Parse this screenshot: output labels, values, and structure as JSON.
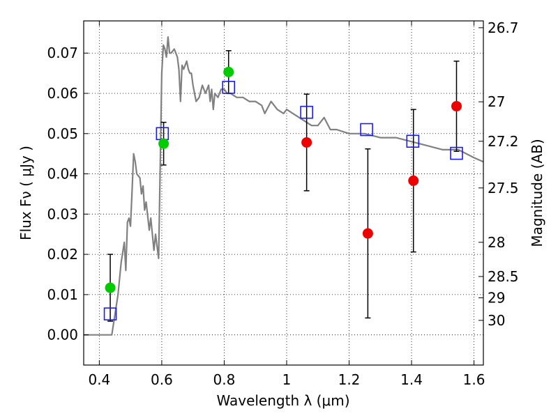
{
  "chart_data": {
    "type": "scatter",
    "xlabel": "Wavelength  λ (μm)",
    "ylabel": "Flux  Fν  ( μJy )",
    "y2label": "Magnitude (AB)",
    "xlim": [
      0.35,
      1.63
    ],
    "ylim": [
      -0.0075,
      0.078
    ],
    "grid": true,
    "xticks": [
      0.4,
      0.6,
      0.8,
      1.0,
      1.2,
      1.4,
      1.6
    ],
    "xtick_labels": [
      "0.4",
      "0.6",
      "0.8",
      "1",
      "1.2",
      "1.4",
      "1.6"
    ],
    "yticks": [
      0.0,
      0.01,
      0.02,
      0.03,
      0.04,
      0.05,
      0.06,
      0.07
    ],
    "ytick_labels": [
      "0.00",
      "0.01",
      "0.02",
      "0.03",
      "0.04",
      "0.05",
      "0.06",
      "0.07"
    ],
    "y2ticks": [
      {
        "label": "26.7",
        "flux": 0.0763
      },
      {
        "label": "27",
        "flux": 0.0579
      },
      {
        "label": "27.2",
        "flux": 0.0481
      },
      {
        "label": "27.5",
        "flux": 0.0365
      },
      {
        "label": "28",
        "flux": 0.023
      },
      {
        "label": "28.5",
        "flux": 0.0145
      },
      {
        "label": "29",
        "flux": 0.0092
      },
      {
        "label": "30",
        "flux": 0.0036
      }
    ],
    "model_spectrum": {
      "color": "#808080",
      "x": [
        0.35,
        0.43,
        0.44,
        0.46,
        0.47,
        0.48,
        0.485,
        0.49,
        0.495,
        0.5,
        0.505,
        0.51,
        0.515,
        0.52,
        0.53,
        0.535,
        0.54,
        0.545,
        0.55,
        0.56,
        0.565,
        0.575,
        0.58,
        0.585,
        0.59,
        0.595,
        0.6,
        0.605,
        0.61,
        0.615,
        0.62,
        0.625,
        0.63,
        0.64,
        0.645,
        0.65,
        0.655,
        0.66,
        0.665,
        0.67,
        0.68,
        0.685,
        0.69,
        0.695,
        0.7,
        0.705,
        0.71,
        0.72,
        0.73,
        0.74,
        0.75,
        0.755,
        0.76,
        0.765,
        0.77,
        0.78,
        0.79,
        0.8,
        0.81,
        0.82,
        0.84,
        0.86,
        0.88,
        0.9,
        0.92,
        0.93,
        0.95,
        0.97,
        0.99,
        1.0,
        1.02,
        1.04,
        1.06,
        1.08,
        1.1,
        1.12,
        1.14,
        1.16,
        1.2,
        1.25,
        1.3,
        1.35,
        1.4,
        1.45,
        1.5,
        1.55,
        1.6,
        1.63
      ],
      "y": [
        0.0,
        0.0,
        0.0,
        0.01,
        0.018,
        0.023,
        0.016,
        0.028,
        0.029,
        0.027,
        0.036,
        0.045,
        0.043,
        0.04,
        0.039,
        0.035,
        0.037,
        0.031,
        0.033,
        0.026,
        0.029,
        0.021,
        0.025,
        0.022,
        0.019,
        0.042,
        0.065,
        0.072,
        0.071,
        0.069,
        0.074,
        0.07,
        0.07,
        0.071,
        0.07,
        0.069,
        0.066,
        0.058,
        0.067,
        0.066,
        0.068,
        0.066,
        0.065,
        0.065,
        0.062,
        0.06,
        0.058,
        0.059,
        0.062,
        0.06,
        0.062,
        0.058,
        0.061,
        0.056,
        0.06,
        0.059,
        0.061,
        0.061,
        0.06,
        0.06,
        0.059,
        0.059,
        0.058,
        0.058,
        0.057,
        0.055,
        0.058,
        0.056,
        0.055,
        0.056,
        0.055,
        0.054,
        0.053,
        0.052,
        0.052,
        0.054,
        0.051,
        0.051,
        0.05,
        0.05,
        0.049,
        0.049,
        0.048,
        0.047,
        0.046,
        0.046,
        0.044,
        0.043
      ]
    },
    "series": [
      {
        "color": "#1a1aff",
        "marker": "open-square",
        "points": [
          {
            "x": 0.435,
            "y": 0.0052
          },
          {
            "x": 0.602,
            "y": 0.05
          },
          {
            "x": 0.814,
            "y": 0.0615
          },
          {
            "x": 1.064,
            "y": 0.0553
          },
          {
            "x": 1.256,
            "y": 0.051
          },
          {
            "x": 1.404,
            "y": 0.0481
          },
          {
            "x": 1.544,
            "y": 0.0451
          }
        ]
      },
      {
        "color": "#00cc00",
        "marker": "filled-circle",
        "points": [
          {
            "x": 0.435,
            "y": 0.0117,
            "err": 0.0083
          },
          {
            "x": 0.606,
            "y": 0.0475,
            "err": 0.0053
          },
          {
            "x": 0.814,
            "y": 0.0653,
            "err": 0.0053
          }
        ]
      },
      {
        "color": "#ee0000",
        "marker": "filled-circle",
        "points": [
          {
            "x": 1.064,
            "y": 0.0478,
            "err": 0.012
          },
          {
            "x": 1.26,
            "y": 0.0252,
            "err": 0.021
          },
          {
            "x": 1.406,
            "y": 0.0383,
            "err": 0.0177
          },
          {
            "x": 1.544,
            "y": 0.0568,
            "err": 0.0112
          }
        ]
      }
    ]
  }
}
